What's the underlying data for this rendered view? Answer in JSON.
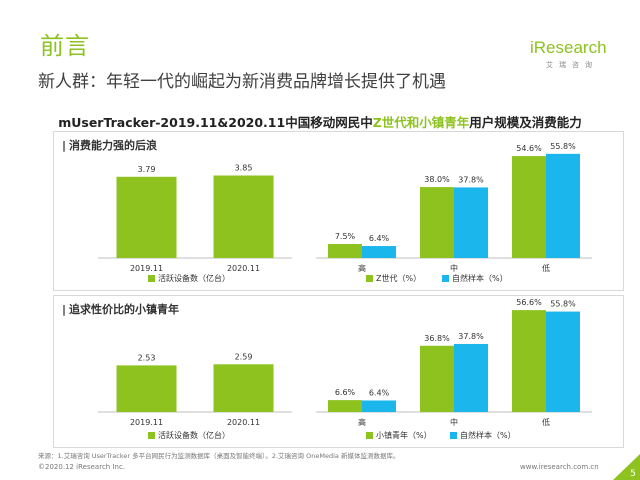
{
  "slide": {
    "title": "前言",
    "subtitle": "新人群：年轻一代的崛起为新消费品牌增长提供了机遇",
    "heading_prefix": "mUserTracker-2019.11&2020.11中国移动网民中",
    "heading_highlight": "Z世代和小镇青年",
    "heading_suffix": "用户规模及消费能力"
  },
  "logo": {
    "word": "iResearch",
    "cn": "艾瑞咨询"
  },
  "colors": {
    "green": "#8dc21f",
    "blue": "#1ab6ec",
    "axis": "#bfbfbf"
  },
  "chart_data": [
    {
      "type": "bar",
      "panel_title": "消费能力强的后浪",
      "categories": [
        "2019.11",
        "2020.11"
      ],
      "series": [
        {
          "name": "活跃设备数（亿台）",
          "values": [
            3.79,
            3.85
          ],
          "labels": [
            "3.79",
            "3.85"
          ]
        }
      ]
    },
    {
      "type": "bar",
      "categories": [
        "高",
        "中",
        "低"
      ],
      "series": [
        {
          "name": "Z世代（%）",
          "values": [
            7.5,
            38.0,
            54.6
          ],
          "labels": [
            "7.5%",
            "38.0%",
            "54.6%"
          ]
        },
        {
          "name": "自然样本（%）",
          "values": [
            6.4,
            37.8,
            55.8
          ],
          "labels": [
            "6.4%",
            "37.8%",
            "55.8%"
          ]
        }
      ]
    },
    {
      "type": "bar",
      "panel_title": "追求性价比的小镇青年",
      "categories": [
        "2019.11",
        "2020.11"
      ],
      "series": [
        {
          "name": "活跃设备数（亿台）",
          "values": [
            2.53,
            2.59
          ],
          "labels": [
            "2.53",
            "2.59"
          ]
        }
      ]
    },
    {
      "type": "bar",
      "categories": [
        "高",
        "中",
        "低"
      ],
      "series": [
        {
          "name": "小镇青年（%）",
          "values": [
            6.6,
            36.8,
            56.6
          ],
          "labels": [
            "6.6%",
            "36.8%",
            "56.6%"
          ]
        },
        {
          "name": "自然样本（%）",
          "values": [
            6.4,
            37.8,
            55.8
          ],
          "labels": [
            "6.4%",
            "37.8%",
            "55.8%"
          ]
        }
      ]
    }
  ],
  "footer": {
    "source": "来源：1.艾瑞咨询 UserTracker 多平台网民行为监测数据库（桌面及智能终端）。2.艾瑞咨询 OneMedia 新媒体监测数据库。",
    "copyright": "©2020.12 iResearch Inc.",
    "website": "www.iresearch.com.cn",
    "page_number": "5"
  }
}
